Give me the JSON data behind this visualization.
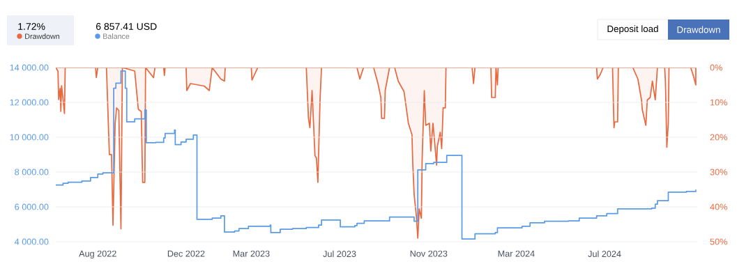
{
  "chart_data": {
    "type": "line",
    "xlim": [
      "2022-06-04",
      "2024-11-06"
    ],
    "xticks": [
      {
        "value": "2022-08-01",
        "label": "Aug 2022"
      },
      {
        "value": "2022-12-01",
        "label": "Dec 2022"
      },
      {
        "value": "2023-03-01",
        "label": "Mar 2023"
      },
      {
        "value": "2023-07-01",
        "label": "Jul 2023"
      },
      {
        "value": "2023-11-01",
        "label": "Nov 2023"
      },
      {
        "value": "2024-03-01",
        "label": "Mar 2024"
      },
      {
        "value": "2024-07-01",
        "label": "Jul 2024"
      }
    ],
    "ylim": [
      4000,
      14000
    ],
    "yticks": [
      {
        "value": 4000,
        "label": "4 000.00"
      },
      {
        "value": 6000,
        "label": "6 000.00"
      },
      {
        "value": 8000,
        "label": "8 000.00"
      },
      {
        "value": 10000,
        "label": "10 000.00"
      },
      {
        "value": 12000,
        "label": "12 000.00"
      },
      {
        "value": 14000,
        "label": "14 000.00"
      }
    ],
    "y2lim": [
      50,
      0
    ],
    "y2ticks": [
      {
        "value": 0,
        "label": "0%"
      },
      {
        "value": 10,
        "label": "10%"
      },
      {
        "value": 20,
        "label": "20%"
      },
      {
        "value": 30,
        "label": "30%"
      },
      {
        "value": 40,
        "label": "40%"
      },
      {
        "value": 50,
        "label": "50%"
      }
    ],
    "grid": "y",
    "legend": "top left",
    "annotations": [
      "1.72%",
      "6 857.41 USD",
      "Deposit load",
      "Drawdown"
    ],
    "series": [
      {
        "name": "Drawdown",
        "type": "area",
        "axis": "y2",
        "color": "#e8683f",
        "x": [
          "2022-06-04",
          "2022-06-07",
          "2022-06-08",
          "2022-06-10",
          "2022-06-11",
          "2022-06-12",
          "2022-06-14",
          "2022-06-16",
          "2022-06-17",
          "2022-07-29",
          "2022-07-30",
          "2022-08-01",
          "2022-08-13",
          "2022-08-17",
          "2022-08-20",
          "2022-08-22",
          "2022-08-25",
          "2022-08-27",
          "2022-08-30",
          "2022-09-02",
          "2022-09-04",
          "2022-09-21",
          "2022-09-26",
          "2022-09-30",
          "2022-10-02",
          "2022-10-05",
          "2022-10-06",
          "2022-10-17",
          "2022-10-19",
          "2022-10-31",
          "2022-11-01",
          "2022-11-02",
          "2022-12-01",
          "2022-12-02",
          "2022-12-07",
          "2022-12-26",
          "2023-01-02",
          "2023-01-06",
          "2023-01-18",
          "2023-01-23",
          "2023-01-24",
          "2023-03-01",
          "2023-03-02",
          "2023-03-10",
          "2023-05-16",
          "2023-05-19",
          "2023-05-21",
          "2023-05-24",
          "2023-05-28",
          "2023-05-30",
          "2023-06-01",
          "2023-06-04",
          "2023-06-06",
          "2023-07-25",
          "2023-07-29",
          "2023-08-03",
          "2023-08-17",
          "2023-08-23",
          "2023-08-27",
          "2023-08-28",
          "2023-09-01",
          "2023-09-02",
          "2023-09-08",
          "2023-09-15",
          "2023-09-20",
          "2023-09-28",
          "2023-10-04",
          "2023-10-09",
          "2023-10-10",
          "2023-10-12",
          "2023-10-15",
          "2023-10-17",
          "2023-10-19",
          "2023-10-22",
          "2023-10-23",
          "2023-10-26",
          "2023-10-28",
          "2023-11-02",
          "2023-11-04",
          "2023-11-07",
          "2023-11-12",
          "2023-11-13",
          "2023-11-17",
          "2023-11-19",
          "2023-11-21",
          "2023-11-24",
          "2023-11-25",
          "2023-12-31",
          "2024-01-02",
          "2024-01-04",
          "2024-01-26",
          "2024-01-27",
          "2024-02-01",
          "2024-02-02",
          "2024-02-04",
          "2024-02-05",
          "2024-06-20",
          "2024-06-21",
          "2024-06-25",
          "2024-06-29",
          "2024-07-12",
          "2024-07-14",
          "2024-07-15",
          "2024-07-19",
          "2024-07-20",
          "2024-08-09",
          "2024-08-16",
          "2024-08-21",
          "2024-08-22",
          "2024-08-27",
          "2024-08-29",
          "2024-09-02",
          "2024-09-05",
          "2024-09-09",
          "2024-09-12",
          "2024-09-22",
          "2024-09-23",
          "2024-09-25",
          "2024-09-27",
          "2024-09-28",
          "2024-10-28",
          "2024-11-01",
          "2024-11-04"
        ],
        "values": [
          0,
          1,
          9.2,
          6,
          12.6,
          5.2,
          9,
          13.2,
          0,
          0,
          2.9,
          0,
          0,
          25,
          25,
          45.3,
          16,
          11.6,
          12.3,
          46.3,
          0,
          1,
          12,
          12.6,
          33,
          33,
          0,
          2.9,
          0,
          0,
          2.3,
          0,
          0,
          6.6,
          4.6,
          5.3,
          6.6,
          0,
          3.3,
          3.9,
          0,
          0,
          3.6,
          0,
          0,
          14.6,
          17.3,
          6.6,
          25.3,
          26,
          33,
          9.3,
          0,
          0,
          3.3,
          0,
          0,
          4.6,
          8.6,
          14.6,
          14.6,
          6.6,
          0,
          0,
          3.9,
          6.9,
          16,
          19.3,
          27.3,
          36.6,
          42.6,
          49,
          40.6,
          43.3,
          26.6,
          6.6,
          16.6,
          16,
          24,
          16,
          28,
          22.6,
          18.6,
          23.3,
          11.6,
          11.6,
          0,
          0,
          4.6,
          0,
          0,
          8.6,
          8.6,
          0,
          5,
          0,
          0,
          3.3,
          2,
          0,
          0,
          17.3,
          15.6,
          15.6,
          0,
          0,
          3.3,
          9.3,
          12,
          16.6,
          9.3,
          8.6,
          3.9,
          9.3,
          0,
          0,
          3.9,
          22.9,
          16,
          0,
          0,
          2.6,
          5
        ]
      },
      {
        "name": "Balance",
        "type": "step",
        "color": "#5b9ae6",
        "x": [
          "2022-06-04",
          "2022-06-14",
          "2022-06-21",
          "2022-07-10",
          "2022-07-22",
          "2022-08-01",
          "2022-08-08",
          "2022-08-23",
          "2022-08-26",
          "2022-09-02",
          "2022-09-08",
          "2022-09-10",
          "2022-09-21",
          "2022-10-05",
          "2022-10-07",
          "2022-10-20",
          "2022-10-31",
          "2022-11-02",
          "2022-11-15",
          "2022-11-16",
          "2022-11-24",
          "2022-12-01",
          "2022-12-11",
          "2022-12-16",
          "2023-01-06",
          "2023-01-18",
          "2023-01-23",
          "2023-02-06",
          "2023-02-12",
          "2023-02-25",
          "2023-03-27",
          "2023-03-28",
          "2023-04-10",
          "2023-04-27",
          "2023-05-16",
          "2023-06-02",
          "2023-06-06",
          "2023-07-02",
          "2023-07-22",
          "2023-07-25",
          "2023-08-04",
          "2023-09-08",
          "2023-10-12",
          "2023-10-17",
          "2023-10-28",
          "2023-11-08",
          "2023-11-26",
          "2023-12-17",
          "2024-01-04",
          "2024-02-01",
          "2024-02-04",
          "2024-03-09",
          "2024-03-20",
          "2024-04-09",
          "2024-05-12",
          "2024-05-27",
          "2024-06-20",
          "2024-07-04",
          "2024-07-19",
          "2024-09-04",
          "2024-09-09",
          "2024-09-12",
          "2024-09-27",
          "2024-10-22",
          "2024-11-04"
        ],
        "values": [
          7250,
          7350,
          7410,
          7480,
          7680,
          7880,
          7950,
          12810,
          13100,
          13800,
          12810,
          10880,
          11050,
          11560,
          9680,
          9700,
          9950,
          10210,
          10410,
          9570,
          9720,
          9880,
          10120,
          5280,
          5350,
          5480,
          4550,
          4610,
          4750,
          4880,
          4950,
          4520,
          4710,
          4750,
          4810,
          4950,
          5240,
          4850,
          4920,
          5050,
          5190,
          5410,
          5170,
          8120,
          8480,
          8550,
          8950,
          4150,
          4450,
          4520,
          4790,
          4880,
          5080,
          5170,
          5190,
          5350,
          5480,
          5610,
          5880,
          5920,
          6150,
          6350,
          6840,
          6880,
          6990
        ]
      }
    ]
  }
}
